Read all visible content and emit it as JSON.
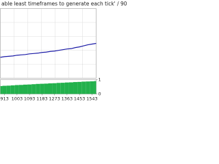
{
  "title": "able least timeframes to generate each tick' / 90",
  "chart_data": [
    {
      "type": "line",
      "color": "#1a1aa6",
      "x": [
        883,
        913,
        943,
        973,
        1003,
        1033,
        1063,
        1093,
        1123,
        1153,
        1183,
        1213,
        1243,
        1273,
        1303,
        1333,
        1363,
        1393,
        1423,
        1453,
        1483,
        1513,
        1543,
        1573
      ],
      "values": [
        30,
        31,
        31.5,
        32,
        33,
        33.5,
        34,
        35,
        35.5,
        36,
        37,
        37.5,
        38.5,
        39,
        40,
        41,
        42,
        42.5,
        44,
        45,
        46.5,
        48,
        49,
        50
      ],
      "xlim": [
        883,
        1573
      ],
      "ylim": [
        0,
        100
      ],
      "grid": true
    },
    {
      "type": "bar",
      "color": "#22b14c",
      "x": [
        883,
        913,
        943,
        973,
        1003,
        1033,
        1063,
        1093,
        1123,
        1153,
        1183,
        1213,
        1243,
        1273,
        1303,
        1333,
        1363,
        1393,
        1423,
        1453,
        1483,
        1513,
        1543,
        1573
      ],
      "values": [
        0.55,
        0.57,
        0.58,
        0.6,
        0.62,
        0.63,
        0.65,
        0.66,
        0.68,
        0.7,
        0.71,
        0.72,
        0.74,
        0.75,
        0.77,
        0.78,
        0.8,
        0.81,
        0.83,
        0.84,
        0.86,
        0.87,
        0.88,
        0.9
      ],
      "xlim": [
        883,
        1573
      ],
      "ylim": [
        0,
        1
      ],
      "yticks": [
        0,
        1
      ],
      "xticks": [
        913,
        1003,
        1093,
        1183,
        1273,
        1363,
        1453,
        1543
      ]
    }
  ]
}
